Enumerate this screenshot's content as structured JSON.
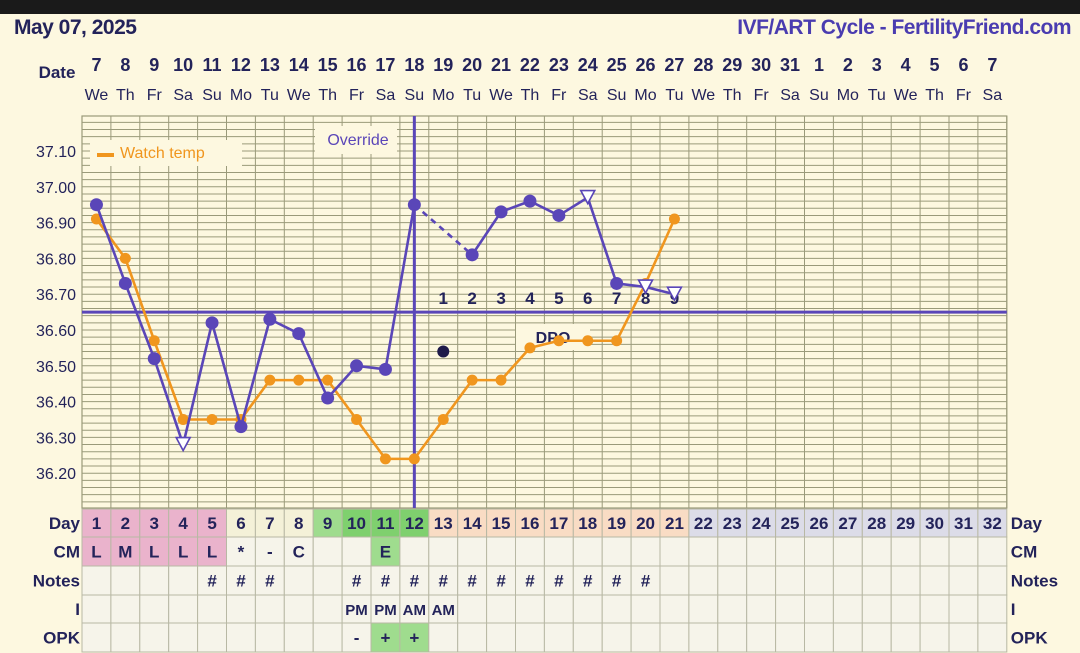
{
  "header": {
    "date": "May 07, 2025",
    "title": "IVF/ART Cycle - FertilityFriend.com"
  },
  "row_labels": {
    "date": "Date",
    "day": "Day",
    "cm": "CM",
    "notes": "Notes",
    "intercourse": "I",
    "opk": "OPK"
  },
  "dates": [
    "7",
    "8",
    "9",
    "10",
    "11",
    "12",
    "13",
    "14",
    "15",
    "16",
    "17",
    "18",
    "19",
    "20",
    "21",
    "22",
    "23",
    "24",
    "25",
    "26",
    "27",
    "28",
    "29",
    "30",
    "31",
    "1",
    "2",
    "3",
    "4",
    "5",
    "6",
    "7"
  ],
  "weekdays": [
    "We",
    "Th",
    "Fr",
    "Sa",
    "Su",
    "Mo",
    "Tu",
    "We",
    "Th",
    "Fr",
    "Sa",
    "Su",
    "Mo",
    "Tu",
    "We",
    "Th",
    "Fr",
    "Sa",
    "Su",
    "Mo",
    "Tu",
    "We",
    "Th",
    "Fr",
    "Sa",
    "Su",
    "Mo",
    "Tu",
    "We",
    "Th",
    "Fr",
    "Sa"
  ],
  "cycle_days": [
    "1",
    "2",
    "3",
    "4",
    "5",
    "6",
    "7",
    "8",
    "9",
    "10",
    "11",
    "12",
    "13",
    "14",
    "15",
    "16",
    "17",
    "18",
    "19",
    "20",
    "21",
    "22",
    "23",
    "24",
    "25",
    "26",
    "27",
    "28",
    "29",
    "30",
    "31",
    "32"
  ],
  "cm": [
    "L",
    "M",
    "L",
    "L",
    "L",
    "*",
    "-",
    "C",
    "",
    "",
    "E",
    "",
    "",
    "",
    "",
    "",
    "",
    "",
    "",
    "",
    "",
    "",
    "",
    "",
    "",
    "",
    "",
    "",
    "",
    "",
    "",
    ""
  ],
  "notes": [
    "",
    "",
    "",
    "",
    "#",
    "#",
    "#",
    "",
    "",
    "#",
    "#",
    "#",
    "#",
    "#",
    "#",
    "#",
    "#",
    "#",
    "#",
    "#",
    "",
    "",
    "",
    "",
    "",
    "",
    "",
    "",
    "",
    "",
    "",
    ""
  ],
  "intercourse": [
    "",
    "",
    "",
    "",
    "",
    "",
    "",
    "",
    "",
    "PM",
    "PM",
    "AM",
    "AM",
    "",
    "",
    "",
    "",
    "",
    "",
    "",
    "",
    "",
    "",
    "",
    "",
    "",
    "",
    "",
    "",
    "",
    "",
    ""
  ],
  "opk": [
    "",
    "",
    "",
    "",
    "",
    "",
    "",
    "",
    "",
    "-",
    "+",
    "+",
    "",
    "",
    "",
    "",
    "",
    "",
    "",
    "",
    "",
    "",
    "",
    "",
    "",
    "",
    "",
    "",
    "",
    "",
    "",
    ""
  ],
  "colors": {
    "main_series": "#5a46b8",
    "watch_series": "#f0961e",
    "grid": "#9a9a7a",
    "plot_bg": "#fdf8e0",
    "label_text": "#23235a",
    "menses": "#eab3cc",
    "fertile": "#9fdc8e",
    "fertile_peak": "#7fd06e",
    "luteal": "#f9dcc4",
    "future": "#dcdce8",
    "coverline": "#5a46b8"
  },
  "chart_data": {
    "type": "line",
    "x": [
      1,
      2,
      3,
      4,
      5,
      6,
      7,
      8,
      9,
      10,
      11,
      12,
      13,
      14,
      15,
      16,
      17,
      18,
      19,
      20,
      21,
      22,
      23,
      24,
      25,
      26,
      27,
      28,
      29,
      30,
      31,
      32
    ],
    "yticks": [
      "37.10",
      "37.00",
      "36.90",
      "36.80",
      "36.70",
      "36.60",
      "36.50",
      "36.40",
      "36.30",
      "36.20"
    ],
    "ylim": [
      36.13,
      37.19
    ],
    "grid": true,
    "legend": {
      "label": "Watch temp",
      "placement": "top-left"
    },
    "override_label": "Override",
    "dpo_label": "DPO",
    "dpo_numbers": [
      "1",
      "2",
      "3",
      "4",
      "5",
      "6",
      "7",
      "8",
      "9"
    ],
    "ovulation_day": 12,
    "coverline": 36.65,
    "series": [
      {
        "points": [
          {
            "x": 1,
            "y": 36.95
          },
          {
            "x": 2,
            "y": 36.73
          },
          {
            "x": 3,
            "y": 36.52
          },
          {
            "x": 4,
            "y": 36.28,
            "marker": "triangle"
          },
          {
            "x": 5,
            "y": 36.62
          },
          {
            "x": 6,
            "y": 36.33
          },
          {
            "x": 7,
            "y": 36.63
          },
          {
            "x": 8,
            "y": 36.59
          },
          {
            "x": 9,
            "y": 36.41
          },
          {
            "x": 10,
            "y": 36.5
          },
          {
            "x": 11,
            "y": 36.49
          },
          {
            "x": 12,
            "y": 36.95
          },
          {
            "x": 14,
            "y": 36.81,
            "dashed_from_prev": true
          },
          {
            "x": 15,
            "y": 36.93
          },
          {
            "x": 16,
            "y": 36.96
          },
          {
            "x": 17,
            "y": 36.92
          },
          {
            "x": 18,
            "y": 36.97,
            "marker": "triangle"
          },
          {
            "x": 19,
            "y": 36.73
          },
          {
            "x": 20,
            "y": 36.72,
            "marker": "triangle"
          },
          {
            "x": 21,
            "y": 36.7,
            "marker": "triangle"
          }
        ]
      },
      {
        "name": "Watch temp",
        "points": [
          {
            "x": 1,
            "y": 36.91
          },
          {
            "x": 2,
            "y": 36.8
          },
          {
            "x": 3,
            "y": 36.57
          },
          {
            "x": 4,
            "y": 36.35
          },
          {
            "x": 5,
            "y": 36.35
          },
          {
            "x": 6,
            "y": 36.35
          },
          {
            "x": 7,
            "y": 36.46
          },
          {
            "x": 8,
            "y": 36.46
          },
          {
            "x": 9,
            "y": 36.46
          },
          {
            "x": 10,
            "y": 36.35
          },
          {
            "x": 11,
            "y": 36.24
          },
          {
            "x": 12,
            "y": 36.24
          },
          {
            "x": 13,
            "y": 36.35
          },
          {
            "x": 14,
            "y": 36.46
          },
          {
            "x": 15,
            "y": 36.46
          },
          {
            "x": 16,
            "y": 36.55
          },
          {
            "x": 17,
            "y": 36.57
          },
          {
            "x": 18,
            "y": 36.57
          },
          {
            "x": 19,
            "y": 36.57
          },
          {
            "x": 20,
            "y": 36.73
          },
          {
            "x": 21,
            "y": 36.91
          }
        ]
      }
    ],
    "extra_points": [
      {
        "x": 13,
        "y": 36.54
      }
    ]
  }
}
